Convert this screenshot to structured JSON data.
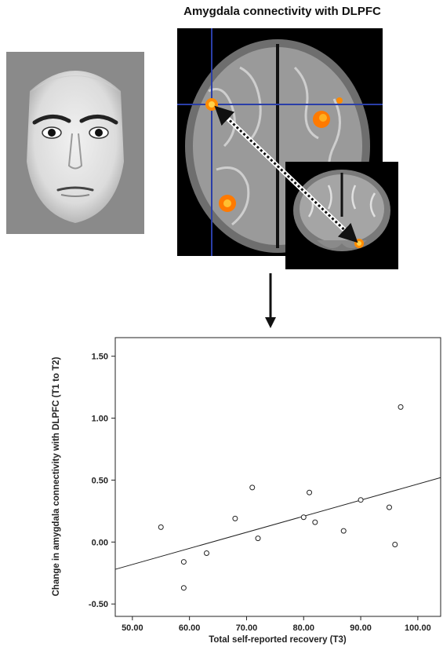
{
  "figure": {
    "title": "Amygdala connectivity with DLPFC"
  },
  "panels": {
    "face": {
      "icon": "angry-face-photo"
    },
    "axial": {
      "icon": "axial-brain-slice",
      "crosshair_color": "#2a3ea8",
      "activation_color": "#ff8a00"
    },
    "coronal": {
      "icon": "coronal-brain-slice",
      "activation_color": "#ff8a00"
    },
    "arrow": {
      "icon": "down-arrow-icon"
    }
  },
  "chart_data": {
    "type": "scatter",
    "xlabel": "Total self-reported recovery (T3)",
    "ylabel": "Change in amygdala connectivity with DLPFC (T1 to T2)",
    "xlim": [
      47,
      104
    ],
    "ylim": [
      -0.6,
      1.65
    ],
    "xticks": [
      "50.00",
      "60.00",
      "70.00",
      "80.00",
      "90.00",
      "100.00"
    ],
    "xtick_values": [
      50,
      60,
      70,
      80,
      90,
      100
    ],
    "yticks": [
      "1.50",
      "1.00",
      "0.50",
      "0.00",
      "-0.50"
    ],
    "ytick_values": [
      1.5,
      1.0,
      0.5,
      0.0,
      -0.5
    ],
    "points": [
      {
        "x": 55,
        "y": 0.12
      },
      {
        "x": 59,
        "y": -0.16
      },
      {
        "x": 59,
        "y": -0.37
      },
      {
        "x": 63,
        "y": -0.09
      },
      {
        "x": 68,
        "y": 0.19
      },
      {
        "x": 71,
        "y": 0.44
      },
      {
        "x": 72,
        "y": 0.03
      },
      {
        "x": 80,
        "y": 0.2
      },
      {
        "x": 81,
        "y": 0.4
      },
      {
        "x": 82,
        "y": 0.16
      },
      {
        "x": 87,
        "y": 0.09
      },
      {
        "x": 90,
        "y": 0.34
      },
      {
        "x": 95,
        "y": 0.28
      },
      {
        "x": 96,
        "y": -0.02
      },
      {
        "x": 97,
        "y": 1.09
      }
    ],
    "fit_line": {
      "x": [
        47,
        104
      ],
      "y": [
        -0.22,
        0.52
      ]
    },
    "grid": false,
    "legend": "none"
  }
}
